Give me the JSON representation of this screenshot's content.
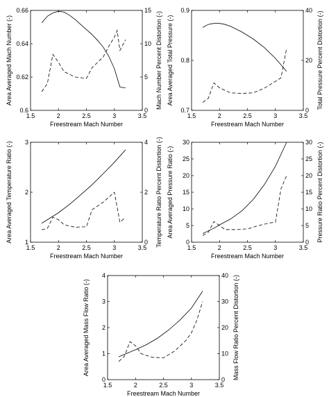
{
  "chart_data": [
    {
      "type": "line",
      "xlabel": "Freestream Mach Number",
      "ylabel": "Area Averaged Mach Number (-)",
      "y2label": "Mach Number Percent Distortion (-)",
      "xlim": [
        1.5,
        3.5
      ],
      "ylim": [
        0.6,
        0.66
      ],
      "y2lim": [
        0,
        15
      ],
      "xticks": [
        "1.5",
        "2",
        "2.5",
        "3",
        "3.5"
      ],
      "yticks": [
        "0.6",
        "0.62",
        "0.64",
        "0.66"
      ],
      "y2ticks": [
        "0",
        "5",
        "10",
        "15"
      ],
      "series": [
        {
          "axis": "left",
          "style": "solid",
          "x": [
            1.7,
            1.8,
            1.9,
            2.0,
            2.1,
            2.2,
            2.3,
            2.4,
            2.5,
            2.6,
            2.7,
            2.8,
            2.9,
            3.0,
            3.1,
            3.2
          ],
          "y": [
            0.6525,
            0.6565,
            0.6585,
            0.6595,
            0.659,
            0.657,
            0.6545,
            0.6515,
            0.6485,
            0.6455,
            0.642,
            0.638,
            0.6325,
            0.625,
            0.614,
            0.6135
          ]
        },
        {
          "axis": "right",
          "style": "dashed",
          "x": [
            1.7,
            1.8,
            1.9,
            2.0,
            2.1,
            2.3,
            2.5,
            2.6,
            2.8,
            2.9,
            3.0,
            3.05,
            3.1,
            3.2
          ],
          "y": [
            2.8,
            4.0,
            8.4,
            7.2,
            5.8,
            5.0,
            4.8,
            6.4,
            8.0,
            9.6,
            11.0,
            12.0,
            9.0,
            10.6
          ]
        }
      ]
    },
    {
      "type": "line",
      "xlabel": "Freestream Mach Number",
      "ylabel": "Area Averaged Total Pressure (-)",
      "y2label": "Total Pressure Percent Distortion (-)",
      "xlim": [
        1.5,
        3.5
      ],
      "ylim": [
        0.7,
        0.9
      ],
      "y2lim": [
        0,
        40
      ],
      "xticks": [
        "1.5",
        "2",
        "2.5",
        "3",
        "3.5"
      ],
      "yticks": [
        "0.7",
        "0.8",
        "0.9"
      ],
      "y2ticks": [
        "0",
        "20",
        "40"
      ],
      "series": [
        {
          "axis": "left",
          "style": "solid",
          "x": [
            1.7,
            1.8,
            1.9,
            2.0,
            2.1,
            2.2,
            2.4,
            2.6,
            2.8,
            3.0,
            3.2
          ],
          "y": [
            0.866,
            0.872,
            0.874,
            0.874,
            0.872,
            0.868,
            0.857,
            0.843,
            0.826,
            0.804,
            0.778
          ]
        },
        {
          "axis": "right",
          "style": "dashed",
          "x": [
            1.7,
            1.8,
            1.9,
            2.0,
            2.2,
            2.4,
            2.6,
            2.8,
            3.0,
            3.1,
            3.2
          ],
          "y": [
            3.2,
            4.8,
            11.0,
            9.0,
            7.0,
            6.8,
            7.0,
            8.8,
            11.6,
            13.0,
            24.8
          ]
        }
      ]
    },
    {
      "type": "line",
      "xlabel": "Freestream Mach Number",
      "ylabel": "Area Averaged Temperature Ratio (-)",
      "y2label": "Temperature Ratio Percent Distortion (-)",
      "xlim": [
        1.5,
        3.5
      ],
      "ylim": [
        1,
        3
      ],
      "y2lim": [
        0,
        4
      ],
      "xticks": [
        "1.5",
        "2",
        "2.5",
        "3",
        "3.5"
      ],
      "yticks": [
        "1",
        "2",
        "3"
      ],
      "y2ticks": [
        "0",
        "2",
        "4"
      ],
      "series": [
        {
          "axis": "left",
          "style": "solid",
          "x": [
            1.7,
            1.8,
            1.9,
            2.0,
            2.2,
            2.4,
            2.6,
            2.8,
            3.0,
            3.2
          ],
          "y": [
            1.38,
            1.45,
            1.52,
            1.59,
            1.76,
            1.95,
            2.15,
            2.37,
            2.6,
            2.85
          ]
        },
        {
          "axis": "right",
          "style": "dashed",
          "x": [
            1.7,
            1.8,
            1.9,
            2.0,
            2.1,
            2.3,
            2.5,
            2.6,
            2.8,
            3.0,
            3.1,
            3.2
          ],
          "y": [
            0.5,
            0.55,
            1.0,
            0.9,
            0.7,
            0.6,
            0.62,
            1.3,
            1.6,
            2.0,
            0.8,
            1.0
          ]
        }
      ]
    },
    {
      "type": "line",
      "xlabel": "Freestream Mach Number",
      "ylabel": "Area Averaged Pressure Ratio (-)",
      "y2label": "Pressure Ratio Percent Distortion (-)",
      "xlim": [
        1.5,
        3.5
      ],
      "ylim": [
        0,
        30
      ],
      "y2lim": [
        0,
        30
      ],
      "xticks": [
        "1.5",
        "2",
        "2.5",
        "3",
        "3.5"
      ],
      "yticks": [
        "0",
        "5",
        "10",
        "15",
        "20",
        "25",
        "30"
      ],
      "y2ticks": [
        "0",
        "5",
        "10",
        "15",
        "20",
        "25",
        "30"
      ],
      "series": [
        {
          "axis": "left",
          "style": "solid",
          "x": [
            1.7,
            1.8,
            1.9,
            2.0,
            2.2,
            2.4,
            2.6,
            2.8,
            3.0,
            3.2
          ],
          "y": [
            2.6,
            3.4,
            4.2,
            5.2,
            7.0,
            9.4,
            12.8,
            17.2,
            22.8,
            30.0
          ]
        },
        {
          "axis": "right",
          "style": "dashed",
          "x": [
            1.7,
            1.8,
            1.9,
            2.0,
            2.1,
            2.3,
            2.5,
            2.7,
            2.9,
            3.0,
            3.1,
            3.2
          ],
          "y": [
            2.0,
            3.0,
            6.2,
            5.0,
            3.8,
            3.8,
            4.0,
            5.0,
            5.8,
            6.0,
            16.0,
            20.0
          ]
        }
      ]
    },
    {
      "type": "line",
      "xlabel": "Freestream Mach Number",
      "ylabel": "Area Averaged Mass Flow Ratio (-)",
      "y2label": "Mass Flow Ratio Percent Distortion (-)",
      "xlim": [
        1.5,
        3.5
      ],
      "ylim": [
        0,
        4
      ],
      "y2lim": [
        0,
        40
      ],
      "xticks": [
        "1.5",
        "2",
        "2.5",
        "3",
        "3.5"
      ],
      "yticks": [
        "0",
        "1",
        "2",
        "3",
        "4"
      ],
      "y2ticks": [
        "0",
        "10",
        "20",
        "30",
        "40"
      ],
      "series": [
        {
          "axis": "left",
          "style": "solid",
          "x": [
            1.7,
            1.8,
            2.0,
            2.2,
            2.4,
            2.6,
            2.8,
            3.0,
            3.2
          ],
          "y": [
            0.88,
            0.97,
            1.15,
            1.35,
            1.6,
            1.92,
            2.3,
            2.75,
            3.4
          ]
        },
        {
          "axis": "right",
          "style": "dashed",
          "x": [
            1.7,
            1.8,
            1.9,
            2.0,
            2.1,
            2.3,
            2.5,
            2.7,
            2.9,
            3.0,
            3.1,
            3.2
          ],
          "y": [
            7.0,
            9.0,
            14.6,
            13.0,
            10.0,
            8.6,
            8.4,
            11.0,
            15.0,
            18.0,
            23.0,
            30.0
          ]
        }
      ]
    }
  ]
}
